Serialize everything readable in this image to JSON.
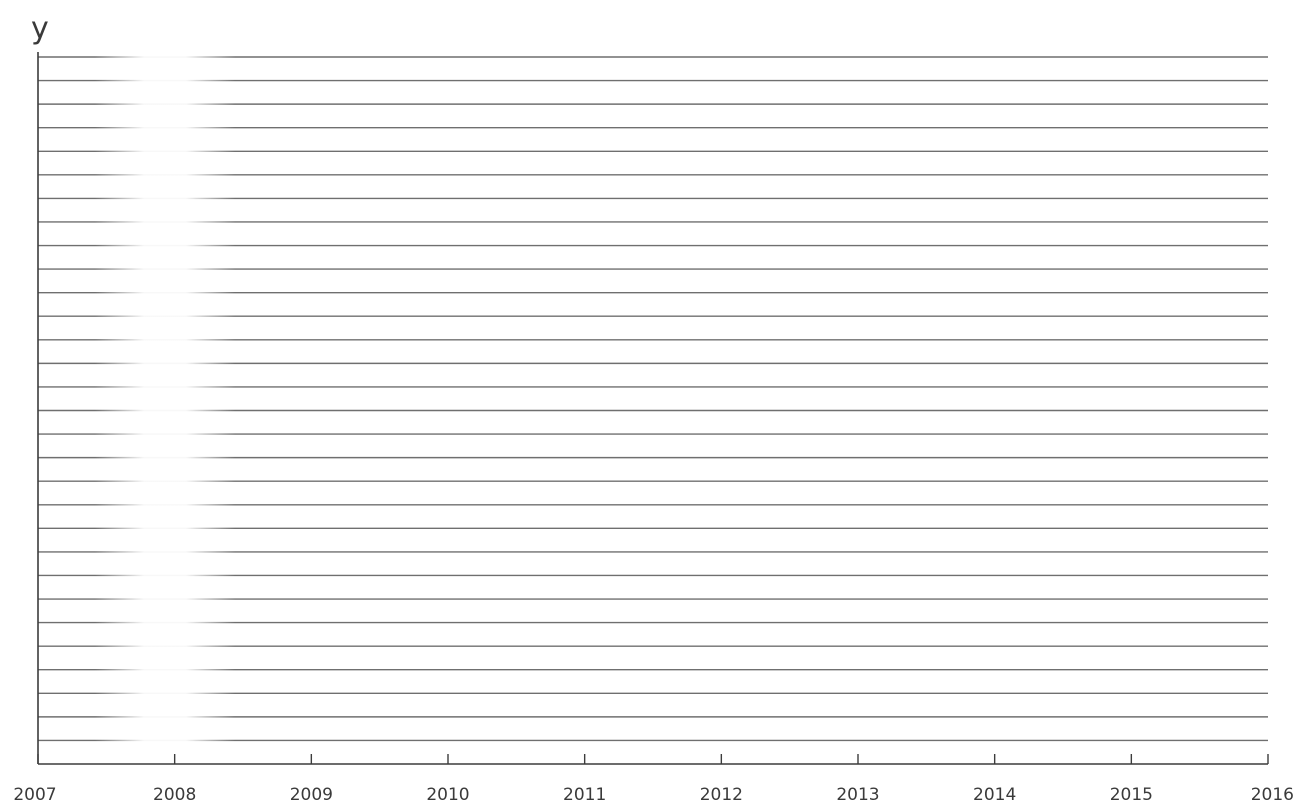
{
  "chart_data": {
    "type": "line",
    "title": "",
    "xlabel": "",
    "ylabel": "y",
    "x_ticks": [
      "2007",
      "2008",
      "2009",
      "2010",
      "2011",
      "2012",
      "2013",
      "2014",
      "2015",
      "2016"
    ],
    "xlim": [
      2007,
      2016
    ],
    "series": [],
    "grid": true,
    "horizontal_gridline_count": 30,
    "faded_tick_labels": [
      "2008"
    ],
    "colors": {
      "grid": "#6f6f6f",
      "axis": "#3c3c3c",
      "text": "#3a3a3a",
      "faded_text": "#c8c8c8"
    }
  }
}
